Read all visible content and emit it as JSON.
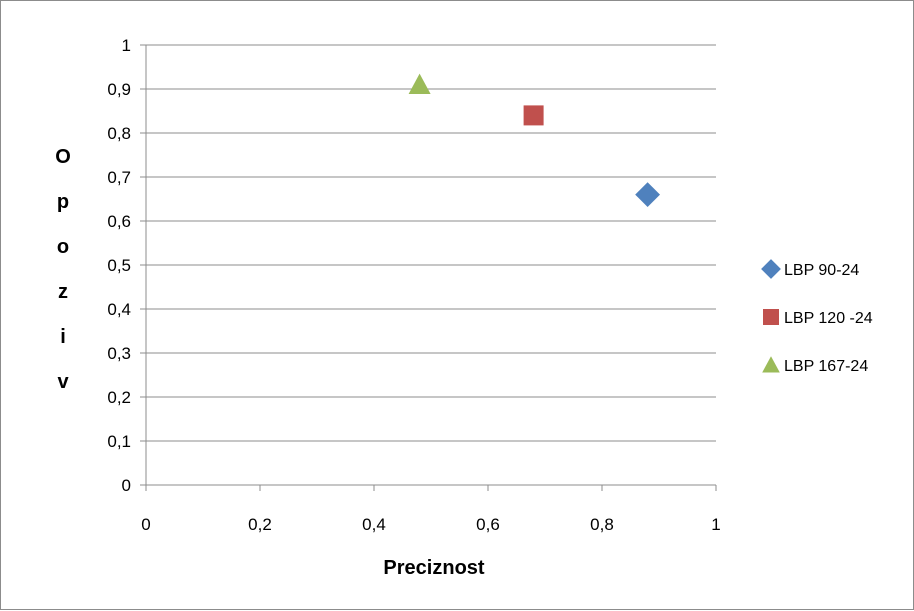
{
  "chart_data": {
    "type": "scatter",
    "title": "",
    "xlabel": "Preciznost",
    "ylabel": "Opoziv",
    "xlim": [
      0,
      1
    ],
    "ylim": [
      0,
      1
    ],
    "x_ticks": [
      "0",
      "0,2",
      "0,4",
      "0,6",
      "0,8",
      "1"
    ],
    "y_ticks": [
      "0",
      "0,1",
      "0,2",
      "0,3",
      "0,4",
      "0,5",
      "0,6",
      "0,7",
      "0,8",
      "0,9",
      "1"
    ],
    "grid": "horizontal",
    "legend_position": "right",
    "series": [
      {
        "name": "LBP 90-24",
        "marker": "diamond",
        "color": "#4f81bd",
        "x": [
          0.88
        ],
        "y": [
          0.66
        ]
      },
      {
        "name": "LBP 120 -24",
        "marker": "square",
        "color": "#c0504d",
        "x": [
          0.68
        ],
        "y": [
          0.84
        ]
      },
      {
        "name": "LBP 167-24",
        "marker": "triangle",
        "color": "#9bbb59",
        "x": [
          0.48
        ],
        "y": [
          0.91
        ]
      }
    ]
  }
}
